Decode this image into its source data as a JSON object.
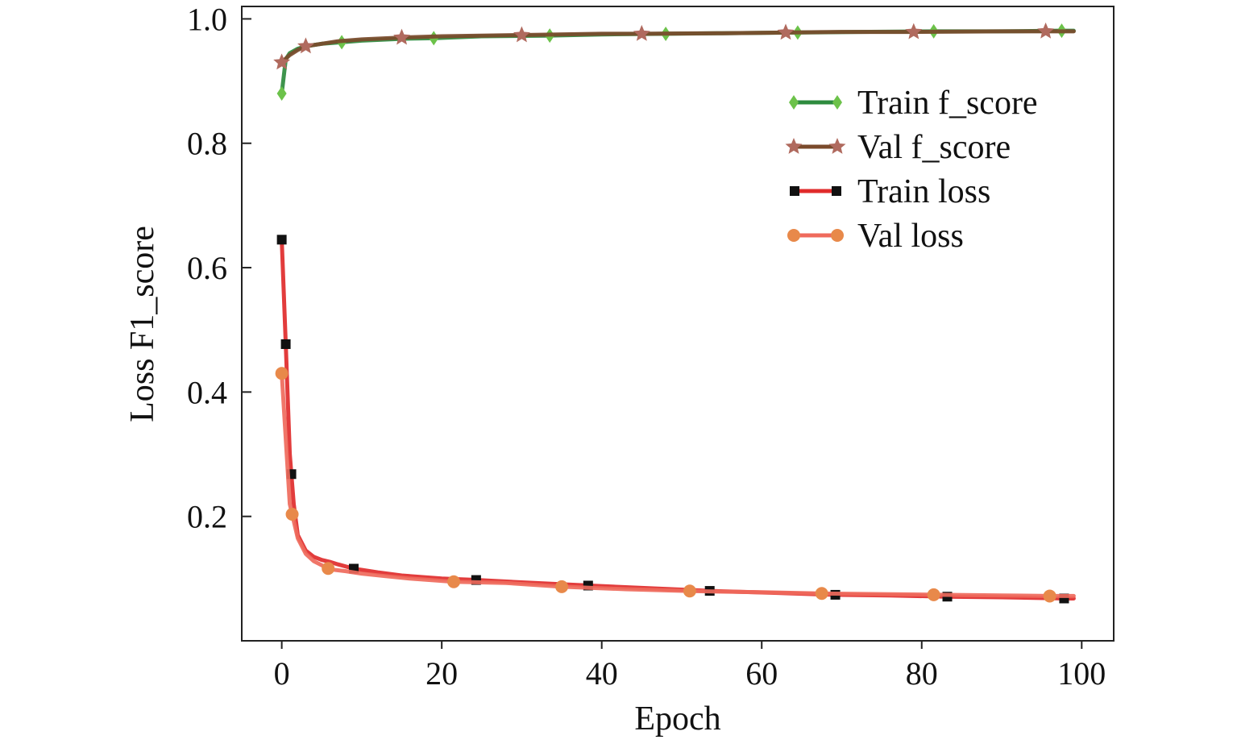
{
  "chart_data": {
    "type": "line",
    "xlabel": "Epoch",
    "ylabel": "Loss F1_score",
    "xlim": [
      -5,
      104
    ],
    "ylim": [
      0,
      1.02
    ],
    "x_ticks": [
      0,
      20,
      40,
      60,
      80,
      100
    ],
    "x_tick_labels": [
      "0",
      "20",
      "40",
      "60",
      "80",
      "100"
    ],
    "y_ticks": [
      0.2,
      0.4,
      0.6,
      0.8,
      1.0
    ],
    "y_tick_labels": [
      "0.2",
      "0.4",
      "0.6",
      "0.8",
      "1.0"
    ],
    "grid": false,
    "legend_position": "top-right",
    "series": [
      {
        "name": "Train f_score",
        "color": "#2e8b3e",
        "marker_color": "#6cc24a",
        "marker": "diamond",
        "x": [
          0,
          0.5,
          1,
          2,
          3,
          5,
          7,
          10,
          15,
          19,
          25,
          33,
          40,
          48,
          55,
          64,
          72,
          82,
          90,
          97,
          99
        ],
        "y": [
          0.88,
          0.935,
          0.945,
          0.952,
          0.956,
          0.96,
          0.962,
          0.965,
          0.968,
          0.969,
          0.972,
          0.973,
          0.975,
          0.976,
          0.977,
          0.978,
          0.979,
          0.98,
          0.98,
          0.981,
          0.981
        ],
        "marker_x": [
          0,
          7.5,
          19,
          33.5,
          48,
          64.5,
          81.5,
          97.5
        ]
      },
      {
        "name": "Val f_score",
        "color": "#7a4a2b",
        "marker_color": "#b06a5e",
        "marker": "star",
        "x": [
          0,
          1,
          2,
          3,
          5,
          7,
          10,
          15,
          20,
          30,
          40,
          45,
          55,
          63,
          70,
          79,
          90,
          95.5,
          99
        ],
        "y": [
          0.93,
          0.942,
          0.95,
          0.956,
          0.96,
          0.964,
          0.967,
          0.97,
          0.972,
          0.974,
          0.976,
          0.976,
          0.977,
          0.978,
          0.979,
          0.979,
          0.98,
          0.98,
          0.98
        ],
        "marker_x": [
          0,
          3,
          15,
          30,
          45,
          63,
          79,
          95.5
        ]
      },
      {
        "name": "Train loss",
        "color": "#e02b2b",
        "marker_color": "#111111",
        "marker": "square",
        "x": [
          0,
          0.5,
          1,
          1.5,
          2,
          3,
          4,
          5,
          6,
          7,
          9,
          12,
          15,
          20,
          24,
          30,
          38,
          45,
          54,
          62,
          69,
          76,
          83,
          90,
          98,
          99
        ],
        "y": [
          0.645,
          0.477,
          0.3,
          0.22,
          0.17,
          0.145,
          0.135,
          0.13,
          0.127,
          0.123,
          0.116,
          0.11,
          0.105,
          0.1,
          0.098,
          0.094,
          0.089,
          0.085,
          0.08,
          0.077,
          0.074,
          0.073,
          0.071,
          0.07,
          0.068,
          0.068
        ],
        "marker_x": [
          0,
          0.5,
          1.2,
          9,
          24.3,
          38.3,
          53.5,
          69.2,
          83.2,
          97.8
        ]
      },
      {
        "name": "Val loss",
        "color": "#ef6a5c",
        "marker_color": "#e8894a",
        "marker": "circle",
        "x": [
          0,
          1,
          2,
          3,
          4,
          6,
          8,
          10,
          13,
          16,
          21.5,
          28,
          35,
          43,
          51,
          60,
          68,
          75,
          82,
          90,
          96,
          99
        ],
        "y": [
          0.43,
          0.22,
          0.165,
          0.14,
          0.128,
          0.115,
          0.112,
          0.108,
          0.104,
          0.1,
          0.095,
          0.093,
          0.087,
          0.083,
          0.08,
          0.078,
          0.076,
          0.075,
          0.074,
          0.073,
          0.072,
          0.072
        ],
        "marker_x": [
          0,
          1.3,
          5.8,
          21.5,
          35,
          51,
          67.5,
          81.5,
          96
        ]
      }
    ]
  }
}
